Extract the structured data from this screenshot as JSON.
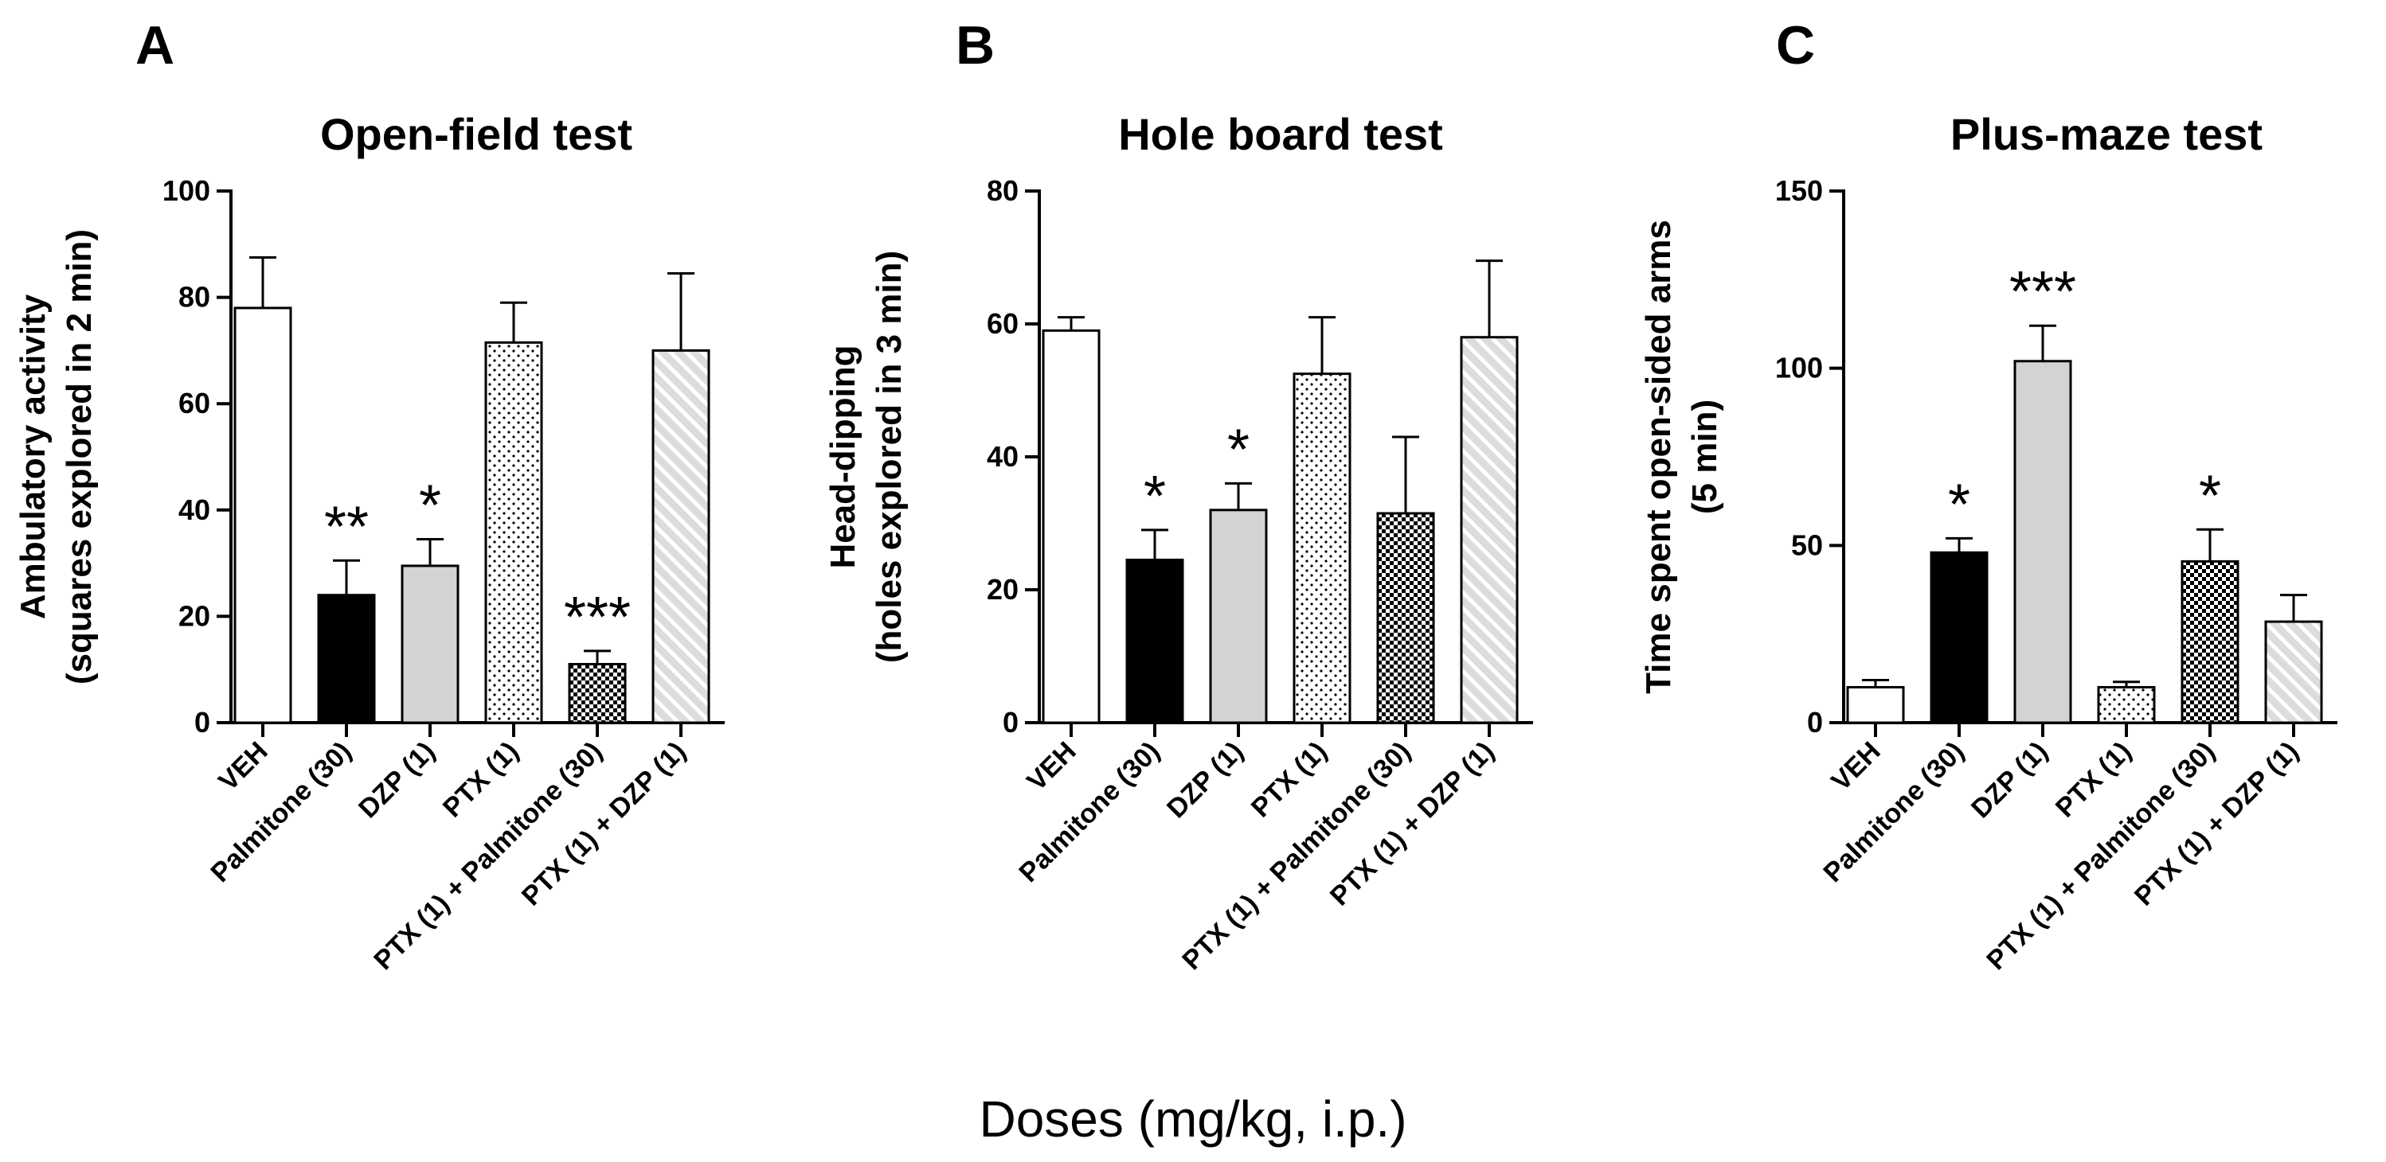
{
  "figure": {
    "xlabel": "Doses (mg/kg, i.p.)"
  },
  "chart_data": [
    {
      "type": "bar",
      "panel": "A",
      "title": "Open-field test",
      "ylabel_lines": [
        "Ambulatory activity",
        "(squares explored in 2 min)"
      ],
      "ylim": [
        0,
        100
      ],
      "yticks": [
        0,
        20,
        40,
        60,
        80,
        100
      ],
      "categories": [
        "VEH",
        "Palmitone (30)",
        "DZP (1)",
        "PTX (1)",
        "PTX (1) + Palmitone (30)",
        "PTX (1) + DZP (1)"
      ],
      "values": [
        78,
        24,
        29.5,
        71.5,
        11,
        70
      ],
      "errors": [
        9.5,
        6.5,
        5,
        7.5,
        2.5,
        14.5
      ],
      "significance": [
        "",
        "**",
        "*",
        "",
        "***",
        ""
      ]
    },
    {
      "type": "bar",
      "panel": "B",
      "title": "Hole board test",
      "ylabel_lines": [
        "Head-dipping",
        "(holes explored in 3 min)"
      ],
      "ylim": [
        0,
        80
      ],
      "yticks": [
        0,
        20,
        40,
        60,
        80
      ],
      "categories": [
        "VEH",
        "Palmitone (30)",
        "DZP (1)",
        "PTX (1)",
        "PTX (1) + Palmitone (30)",
        "PTX (1) + DZP (1)"
      ],
      "values": [
        59,
        24.5,
        32,
        52.5,
        31.5,
        58
      ],
      "errors": [
        2,
        4.5,
        4,
        8.5,
        11.5,
        11.5
      ],
      "significance": [
        "",
        "*",
        "*",
        "",
        "",
        ""
      ]
    },
    {
      "type": "bar",
      "panel": "C",
      "title": "Plus-maze test",
      "ylabel_lines": [
        "Time spent open-sided arms",
        "(5 min)"
      ],
      "ylim": [
        0,
        150
      ],
      "yticks": [
        0,
        50,
        100,
        150
      ],
      "categories": [
        "VEH",
        "Palmitone (30)",
        "DZP (1)",
        "PTX (1)",
        "PTX (1) + Palmitone (30)",
        "PTX (1) + DZP (1)"
      ],
      "values": [
        10,
        48,
        102,
        10,
        45.5,
        28.5
      ],
      "errors": [
        2,
        4,
        10,
        1.5,
        9,
        7.5
      ],
      "significance": [
        "",
        "*",
        "***",
        "",
        "*",
        ""
      ]
    }
  ],
  "bar_styles": [
    {
      "pattern": "solid",
      "fill": "#ffffff"
    },
    {
      "pattern": "solid",
      "fill": "#000000"
    },
    {
      "pattern": "solid",
      "fill": "#d3d3d3"
    },
    {
      "pattern": "dots",
      "fill": "#ffffff"
    },
    {
      "pattern": "checker",
      "fill": "#ffffff"
    },
    {
      "pattern": "diagonal",
      "fill": "#dcdcdc"
    }
  ]
}
